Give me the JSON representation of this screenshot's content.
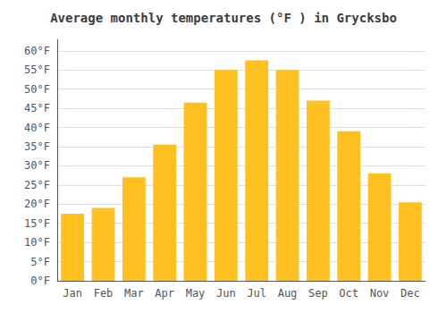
{
  "chart_data": {
    "type": "bar",
    "title": "Average monthly temperatures (°F ) in Grycksbo",
    "categories": [
      "Jan",
      "Feb",
      "Mar",
      "Apr",
      "May",
      "Jun",
      "Jul",
      "Aug",
      "Sep",
      "Oct",
      "Nov",
      "Dec"
    ],
    "values": [
      17.5,
      19.0,
      27.0,
      35.5,
      46.5,
      55.0,
      57.5,
      55.0,
      47.0,
      39.0,
      28.0,
      20.5
    ],
    "color": "#FFC020",
    "ylim": [
      0,
      63
    ],
    "yticks": [
      {
        "value": 0,
        "label": "0°F"
      },
      {
        "value": 5,
        "label": "5°F"
      },
      {
        "value": 10,
        "label": "10°F"
      },
      {
        "value": 15,
        "label": "15°F"
      },
      {
        "value": 20,
        "label": "20°F"
      },
      {
        "value": 25,
        "label": "25°F"
      },
      {
        "value": 30,
        "label": "30°F"
      },
      {
        "value": 35,
        "label": "35°F"
      },
      {
        "value": 40,
        "label": "40°F"
      },
      {
        "value": 45,
        "label": "45°F"
      },
      {
        "value": 50,
        "label": "50°F"
      },
      {
        "value": 55,
        "label": "55°F"
      },
      {
        "value": 60,
        "label": "60°F"
      }
    ],
    "grid": true
  }
}
